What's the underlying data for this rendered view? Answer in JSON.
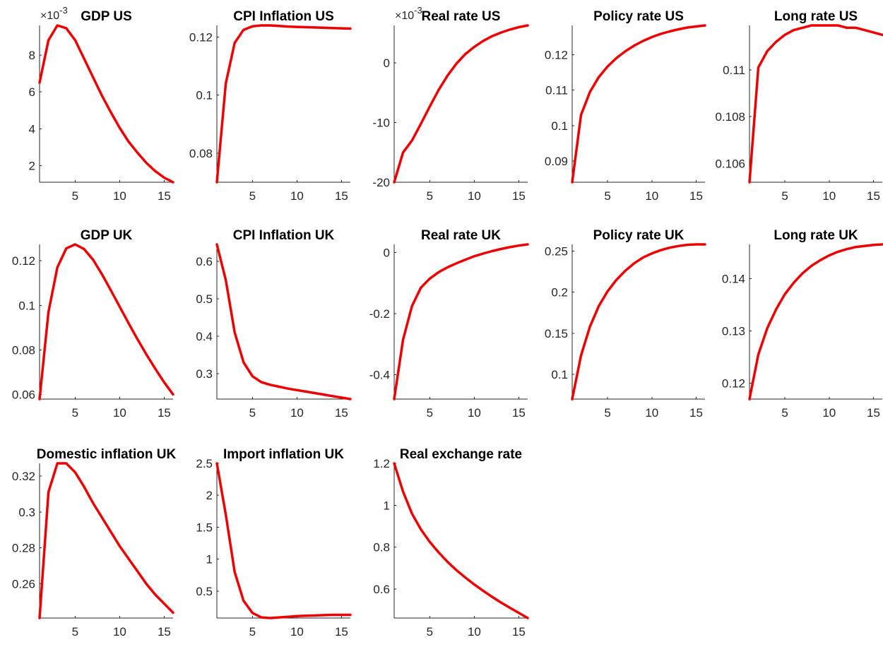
{
  "figure": {
    "line_color": "#ee0000",
    "background": "#ffffff"
  },
  "chart_data": [
    {
      "type": "line",
      "title": "GDP US",
      "exponent_label": "×10",
      "exponent_power": "-3",
      "x": [
        1,
        2,
        3,
        4,
        5,
        6,
        7,
        8,
        9,
        10,
        11,
        12,
        13,
        14,
        15,
        16
      ],
      "series": [
        {
          "values": [
            6.5,
            8.8,
            9.6,
            9.45,
            8.8,
            7.8,
            6.8,
            5.8,
            4.9,
            4.05,
            3.3,
            2.7,
            2.15,
            1.7,
            1.35,
            1.1
          ]
        }
      ],
      "xlim": [
        1,
        16
      ],
      "ylim": [
        1.1,
        9.6
      ],
      "xticks": [
        5,
        10,
        15
      ],
      "xtick_labels": [
        "5",
        "10",
        "15"
      ],
      "yticks": [
        2,
        4,
        6,
        8
      ],
      "ytick_labels": [
        "2",
        "4",
        "6",
        "8"
      ]
    },
    {
      "type": "line",
      "title": "CPI Inflation US",
      "x": [
        1,
        2,
        3,
        4,
        5,
        6,
        7,
        8,
        9,
        10,
        11,
        12,
        13,
        14,
        15,
        16
      ],
      "series": [
        {
          "values": [
            0.07,
            0.104,
            0.118,
            0.1225,
            0.1237,
            0.124,
            0.124,
            0.1238,
            0.1236,
            0.1235,
            0.1234,
            0.1233,
            0.1232,
            0.1231,
            0.123,
            0.1229
          ]
        }
      ],
      "xlim": [
        1,
        16
      ],
      "ylim": [
        0.07,
        0.124
      ],
      "xticks": [
        5,
        10,
        15
      ],
      "xtick_labels": [
        "5",
        "10",
        "15"
      ],
      "yticks": [
        0.08,
        0.1,
        0.12
      ],
      "ytick_labels": [
        "0.08",
        "0.1",
        "0.12"
      ]
    },
    {
      "type": "line",
      "title": "Real rate US",
      "exponent_label": "×10",
      "exponent_power": "-3",
      "x": [
        1,
        2,
        3,
        4,
        5,
        6,
        7,
        8,
        9,
        10,
        11,
        12,
        13,
        14,
        15,
        16
      ],
      "series": [
        {
          "values": [
            -20,
            -15,
            -13,
            -10.2,
            -7.3,
            -4.5,
            -2.1,
            -0.1,
            1.5,
            2.7,
            3.7,
            4.5,
            5.1,
            5.6,
            6.0,
            6.3
          ]
        }
      ],
      "xlim": [
        1,
        16
      ],
      "ylim": [
        -20,
        6.3
      ],
      "xticks": [
        5,
        10,
        15
      ],
      "xtick_labels": [
        "5",
        "10",
        "15"
      ],
      "yticks": [
        -20,
        -10,
        0
      ],
      "ytick_labels": [
        "-20",
        "-10",
        "0"
      ]
    },
    {
      "type": "line",
      "title": "Policy rate US",
      "x": [
        1,
        2,
        3,
        4,
        5,
        6,
        7,
        8,
        9,
        10,
        11,
        12,
        13,
        14,
        15,
        16
      ],
      "series": [
        {
          "values": [
            0.084,
            0.103,
            0.1095,
            0.1137,
            0.1167,
            0.1191,
            0.121,
            0.1226,
            0.1239,
            0.125,
            0.1259,
            0.1266,
            0.1272,
            0.1277,
            0.128,
            0.1283
          ]
        }
      ],
      "xlim": [
        1,
        16
      ],
      "ylim": [
        0.084,
        0.1283
      ],
      "xticks": [
        5,
        10,
        15
      ],
      "xtick_labels": [
        "5",
        "10",
        "15"
      ],
      "yticks": [
        0.09,
        0.1,
        0.11,
        0.12
      ],
      "ytick_labels": [
        "0.09",
        "0.1",
        "0.11",
        "0.12"
      ]
    },
    {
      "type": "line",
      "title": "Long rate US",
      "x": [
        1,
        2,
        3,
        4,
        5,
        6,
        7,
        8,
        9,
        10,
        11,
        12,
        13,
        14,
        15,
        16
      ],
      "series": [
        {
          "values": [
            0.1052,
            0.1101,
            0.1108,
            0.1112,
            0.1115,
            0.1117,
            0.1118,
            0.1119,
            0.1119,
            0.1119,
            0.1119,
            0.1118,
            0.1118,
            0.1117,
            0.1116,
            0.1115
          ]
        }
      ],
      "xlim": [
        1,
        16
      ],
      "ylim": [
        0.1052,
        0.1119
      ],
      "xticks": [
        5,
        10,
        15
      ],
      "xtick_labels": [
        "5",
        "10",
        "15"
      ],
      "yticks": [
        0.106,
        0.108,
        0.11
      ],
      "ytick_labels": [
        "0.106",
        "0.108",
        "0.11"
      ]
    },
    {
      "type": "line",
      "title": "GDP UK",
      "x": [
        1,
        2,
        3,
        4,
        5,
        6,
        7,
        8,
        9,
        10,
        11,
        12,
        13,
        14,
        15,
        16
      ],
      "series": [
        {
          "values": [
            0.058,
            0.097,
            0.117,
            0.1255,
            0.1273,
            0.1252,
            0.1205,
            0.114,
            0.1068,
            0.0994,
            0.092,
            0.0848,
            0.078,
            0.0716,
            0.0655,
            0.0601
          ]
        }
      ],
      "xlim": [
        1,
        16
      ],
      "ylim": [
        0.058,
        0.1273
      ],
      "xticks": [
        5,
        10,
        15
      ],
      "xtick_labels": [
        "5",
        "10",
        "15"
      ],
      "yticks": [
        0.06,
        0.08,
        0.1,
        0.12
      ],
      "ytick_labels": [
        "0.06",
        "0.08",
        "0.1",
        "0.12"
      ]
    },
    {
      "type": "line",
      "title": "CPI Inflation UK",
      "x": [
        1,
        2,
        3,
        4,
        5,
        6,
        7,
        8,
        9,
        10,
        11,
        12,
        13,
        14,
        15,
        16
      ],
      "series": [
        {
          "values": [
            0.645,
            0.55,
            0.41,
            0.33,
            0.293,
            0.277,
            0.27,
            0.265,
            0.26,
            0.256,
            0.252,
            0.248,
            0.244,
            0.24,
            0.236,
            0.232
          ]
        }
      ],
      "xlim": [
        1,
        16
      ],
      "ylim": [
        0.232,
        0.645
      ],
      "xticks": [
        5,
        10,
        15
      ],
      "xtick_labels": [
        "5",
        "10",
        "15"
      ],
      "yticks": [
        0.3,
        0.4,
        0.5,
        0.6
      ],
      "ytick_labels": [
        "0.3",
        "0.4",
        "0.5",
        "0.6"
      ]
    },
    {
      "type": "line",
      "title": "Real rate UK",
      "x": [
        1,
        2,
        3,
        4,
        5,
        6,
        7,
        8,
        9,
        10,
        11,
        12,
        13,
        14,
        15,
        16
      ],
      "series": [
        {
          "values": [
            -0.48,
            -0.285,
            -0.175,
            -0.115,
            -0.085,
            -0.064,
            -0.048,
            -0.035,
            -0.023,
            -0.012,
            -0.003,
            0.005,
            0.012,
            0.018,
            0.023,
            0.027
          ]
        }
      ],
      "xlim": [
        1,
        16
      ],
      "ylim": [
        -0.48,
        0.027
      ],
      "xticks": [
        5,
        10,
        15
      ],
      "xtick_labels": [
        "5",
        "10",
        "15"
      ],
      "yticks": [
        -0.4,
        -0.2,
        0
      ],
      "ytick_labels": [
        "-0.4",
        "-0.2",
        "0"
      ]
    },
    {
      "type": "line",
      "title": "Policy rate UK",
      "x": [
        1,
        2,
        3,
        4,
        5,
        6,
        7,
        8,
        9,
        10,
        11,
        12,
        13,
        14,
        15,
        16
      ],
      "series": [
        {
          "values": [
            0.07,
            0.123,
            0.158,
            0.183,
            0.201,
            0.215,
            0.226,
            0.235,
            0.242,
            0.247,
            0.251,
            0.254,
            0.256,
            0.2575,
            0.258,
            0.258
          ]
        }
      ],
      "xlim": [
        1,
        16
      ],
      "ylim": [
        0.07,
        0.258
      ],
      "xticks": [
        5,
        10,
        15
      ],
      "xtick_labels": [
        "5",
        "10",
        "15"
      ],
      "yticks": [
        0.1,
        0.15,
        0.2,
        0.25
      ],
      "ytick_labels": [
        "0.1",
        "0.15",
        "0.2",
        "0.25"
      ]
    },
    {
      "type": "line",
      "title": "Long rate UK",
      "x": [
        1,
        2,
        3,
        4,
        5,
        6,
        7,
        8,
        9,
        10,
        11,
        12,
        13,
        14,
        15,
        16
      ],
      "series": [
        {
          "values": [
            0.117,
            0.1255,
            0.1305,
            0.1341,
            0.137,
            0.1392,
            0.141,
            0.1424,
            0.1435,
            0.1444,
            0.1451,
            0.1456,
            0.146,
            0.1462,
            0.1464,
            0.1465
          ]
        }
      ],
      "xlim": [
        1,
        16
      ],
      "ylim": [
        0.117,
        0.1465
      ],
      "xticks": [
        5,
        10,
        15
      ],
      "xtick_labels": [
        "5",
        "10",
        "15"
      ],
      "yticks": [
        0.12,
        0.13,
        0.14
      ],
      "ytick_labels": [
        "0.12",
        "0.13",
        "0.14"
      ]
    },
    {
      "type": "line",
      "title": "Domestic inflation UK",
      "x": [
        1,
        2,
        3,
        4,
        5,
        6,
        7,
        8,
        9,
        10,
        11,
        12,
        13,
        14,
        15,
        16
      ],
      "series": [
        {
          "values": [
            0.241,
            0.311,
            0.327,
            0.327,
            0.322,
            0.314,
            0.305,
            0.297,
            0.289,
            0.281,
            0.274,
            0.267,
            0.26,
            0.254,
            0.249,
            0.244
          ]
        }
      ],
      "xlim": [
        1,
        16
      ],
      "ylim": [
        0.241,
        0.327
      ],
      "xticks": [
        5,
        10,
        15
      ],
      "xtick_labels": [
        "5",
        "10",
        "15"
      ],
      "yticks": [
        0.26,
        0.28,
        0.3,
        0.32
      ],
      "ytick_labels": [
        "0.26",
        "0.28",
        "0.3",
        "0.32"
      ]
    },
    {
      "type": "line",
      "title": "Import inflation UK",
      "x": [
        1,
        2,
        3,
        4,
        5,
        6,
        7,
        8,
        9,
        10,
        11,
        12,
        13,
        14,
        15,
        16
      ],
      "series": [
        {
          "values": [
            2.5,
            1.7,
            0.8,
            0.35,
            0.16,
            0.09,
            0.08,
            0.09,
            0.1,
            0.11,
            0.115,
            0.12,
            0.125,
            0.13,
            0.13,
            0.13
          ]
        }
      ],
      "xlim": [
        1,
        16
      ],
      "ylim": [
        0.08,
        2.5
      ],
      "xticks": [
        5,
        10,
        15
      ],
      "xtick_labels": [
        "5",
        "10",
        "15"
      ],
      "yticks": [
        0.5,
        1,
        1.5,
        2,
        2.5
      ],
      "ytick_labels": [
        "0.5",
        "1",
        "1.5",
        "2",
        "2.5"
      ]
    },
    {
      "type": "line",
      "title": "Real exchange rate",
      "x": [
        1,
        2,
        3,
        4,
        5,
        6,
        7,
        8,
        9,
        10,
        11,
        12,
        13,
        14,
        15,
        16
      ],
      "series": [
        {
          "values": [
            1.2,
            1.065,
            0.96,
            0.885,
            0.825,
            0.775,
            0.73,
            0.69,
            0.655,
            0.622,
            0.592,
            0.563,
            0.536,
            0.511,
            0.487,
            0.462
          ]
        }
      ],
      "xlim": [
        1,
        16
      ],
      "ylim": [
        0.462,
        1.2
      ],
      "xticks": [
        5,
        10,
        15
      ],
      "xtick_labels": [
        "5",
        "10",
        "15"
      ],
      "yticks": [
        0.6,
        0.8,
        1,
        1.2
      ],
      "ytick_labels": [
        "0.6",
        "0.8",
        "1",
        "1.2"
      ]
    }
  ]
}
